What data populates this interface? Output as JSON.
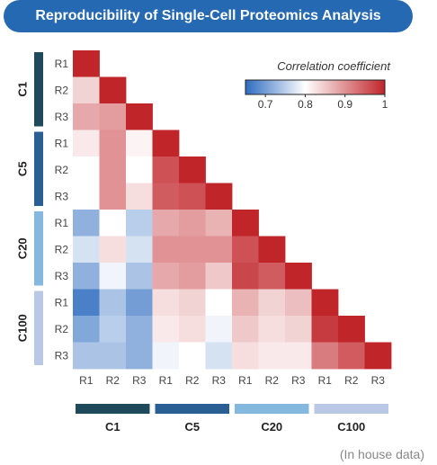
{
  "title": "Reproducibility of Single-Cell Proteomics Analysis",
  "footnote": "(In house data)",
  "chart_data": {
    "type": "heatmap",
    "title": "Reproducibility of Single-Cell Proteomics Analysis",
    "groups": [
      {
        "name": "C1",
        "color": "#1e4a5c"
      },
      {
        "name": "C5",
        "color": "#2a5f94"
      },
      {
        "name": "C20",
        "color": "#85b8de"
      },
      {
        "name": "C100",
        "color": "#b9c8e4"
      }
    ],
    "replicates": [
      "R1",
      "R2",
      "R3"
    ],
    "labels": [
      "R1",
      "R2",
      "R3",
      "R1",
      "R2",
      "R3",
      "R1",
      "R2",
      "R3",
      "R1",
      "R2",
      "R3"
    ],
    "colorbar": {
      "title": "Correlation coefficient",
      "min": 0.65,
      "max": 1.0,
      "ticks": [
        "0.7",
        "0.8",
        "0.9",
        "1"
      ],
      "tick_values": [
        0.7,
        0.8,
        0.9,
        1.0
      ],
      "colors": [
        "#2e6cc0",
        "#ffffff",
        "#c0252a"
      ],
      "center": 0.8
    },
    "lower_triangle_rows": [
      [
        1.0
      ],
      [
        0.84,
        1.0
      ],
      [
        0.88,
        0.89,
        1.0
      ],
      [
        0.82,
        0.9,
        0.81,
        1.0
      ],
      [
        0.8,
        0.9,
        0.8,
        0.96,
        1.0
      ],
      [
        0.8,
        0.9,
        0.83,
        0.95,
        0.96,
        1.0
      ],
      [
        0.72,
        0.8,
        0.75,
        0.88,
        0.89,
        0.87,
        1.0
      ],
      [
        0.77,
        0.83,
        0.77,
        0.9,
        0.9,
        0.9,
        0.96,
        1.0
      ],
      [
        0.72,
        0.79,
        0.74,
        0.88,
        0.89,
        0.85,
        0.97,
        0.95,
        1.0
      ],
      [
        0.67,
        0.74,
        0.7,
        0.83,
        0.84,
        0.8,
        0.87,
        0.84,
        0.86,
        1.0
      ],
      [
        0.71,
        0.75,
        0.72,
        0.82,
        0.83,
        0.79,
        0.85,
        0.83,
        0.84,
        0.98,
        1.0
      ],
      [
        0.74,
        0.74,
        0.72,
        0.79,
        0.8,
        0.77,
        0.83,
        0.82,
        0.82,
        0.92,
        0.95,
        1.0
      ]
    ]
  }
}
